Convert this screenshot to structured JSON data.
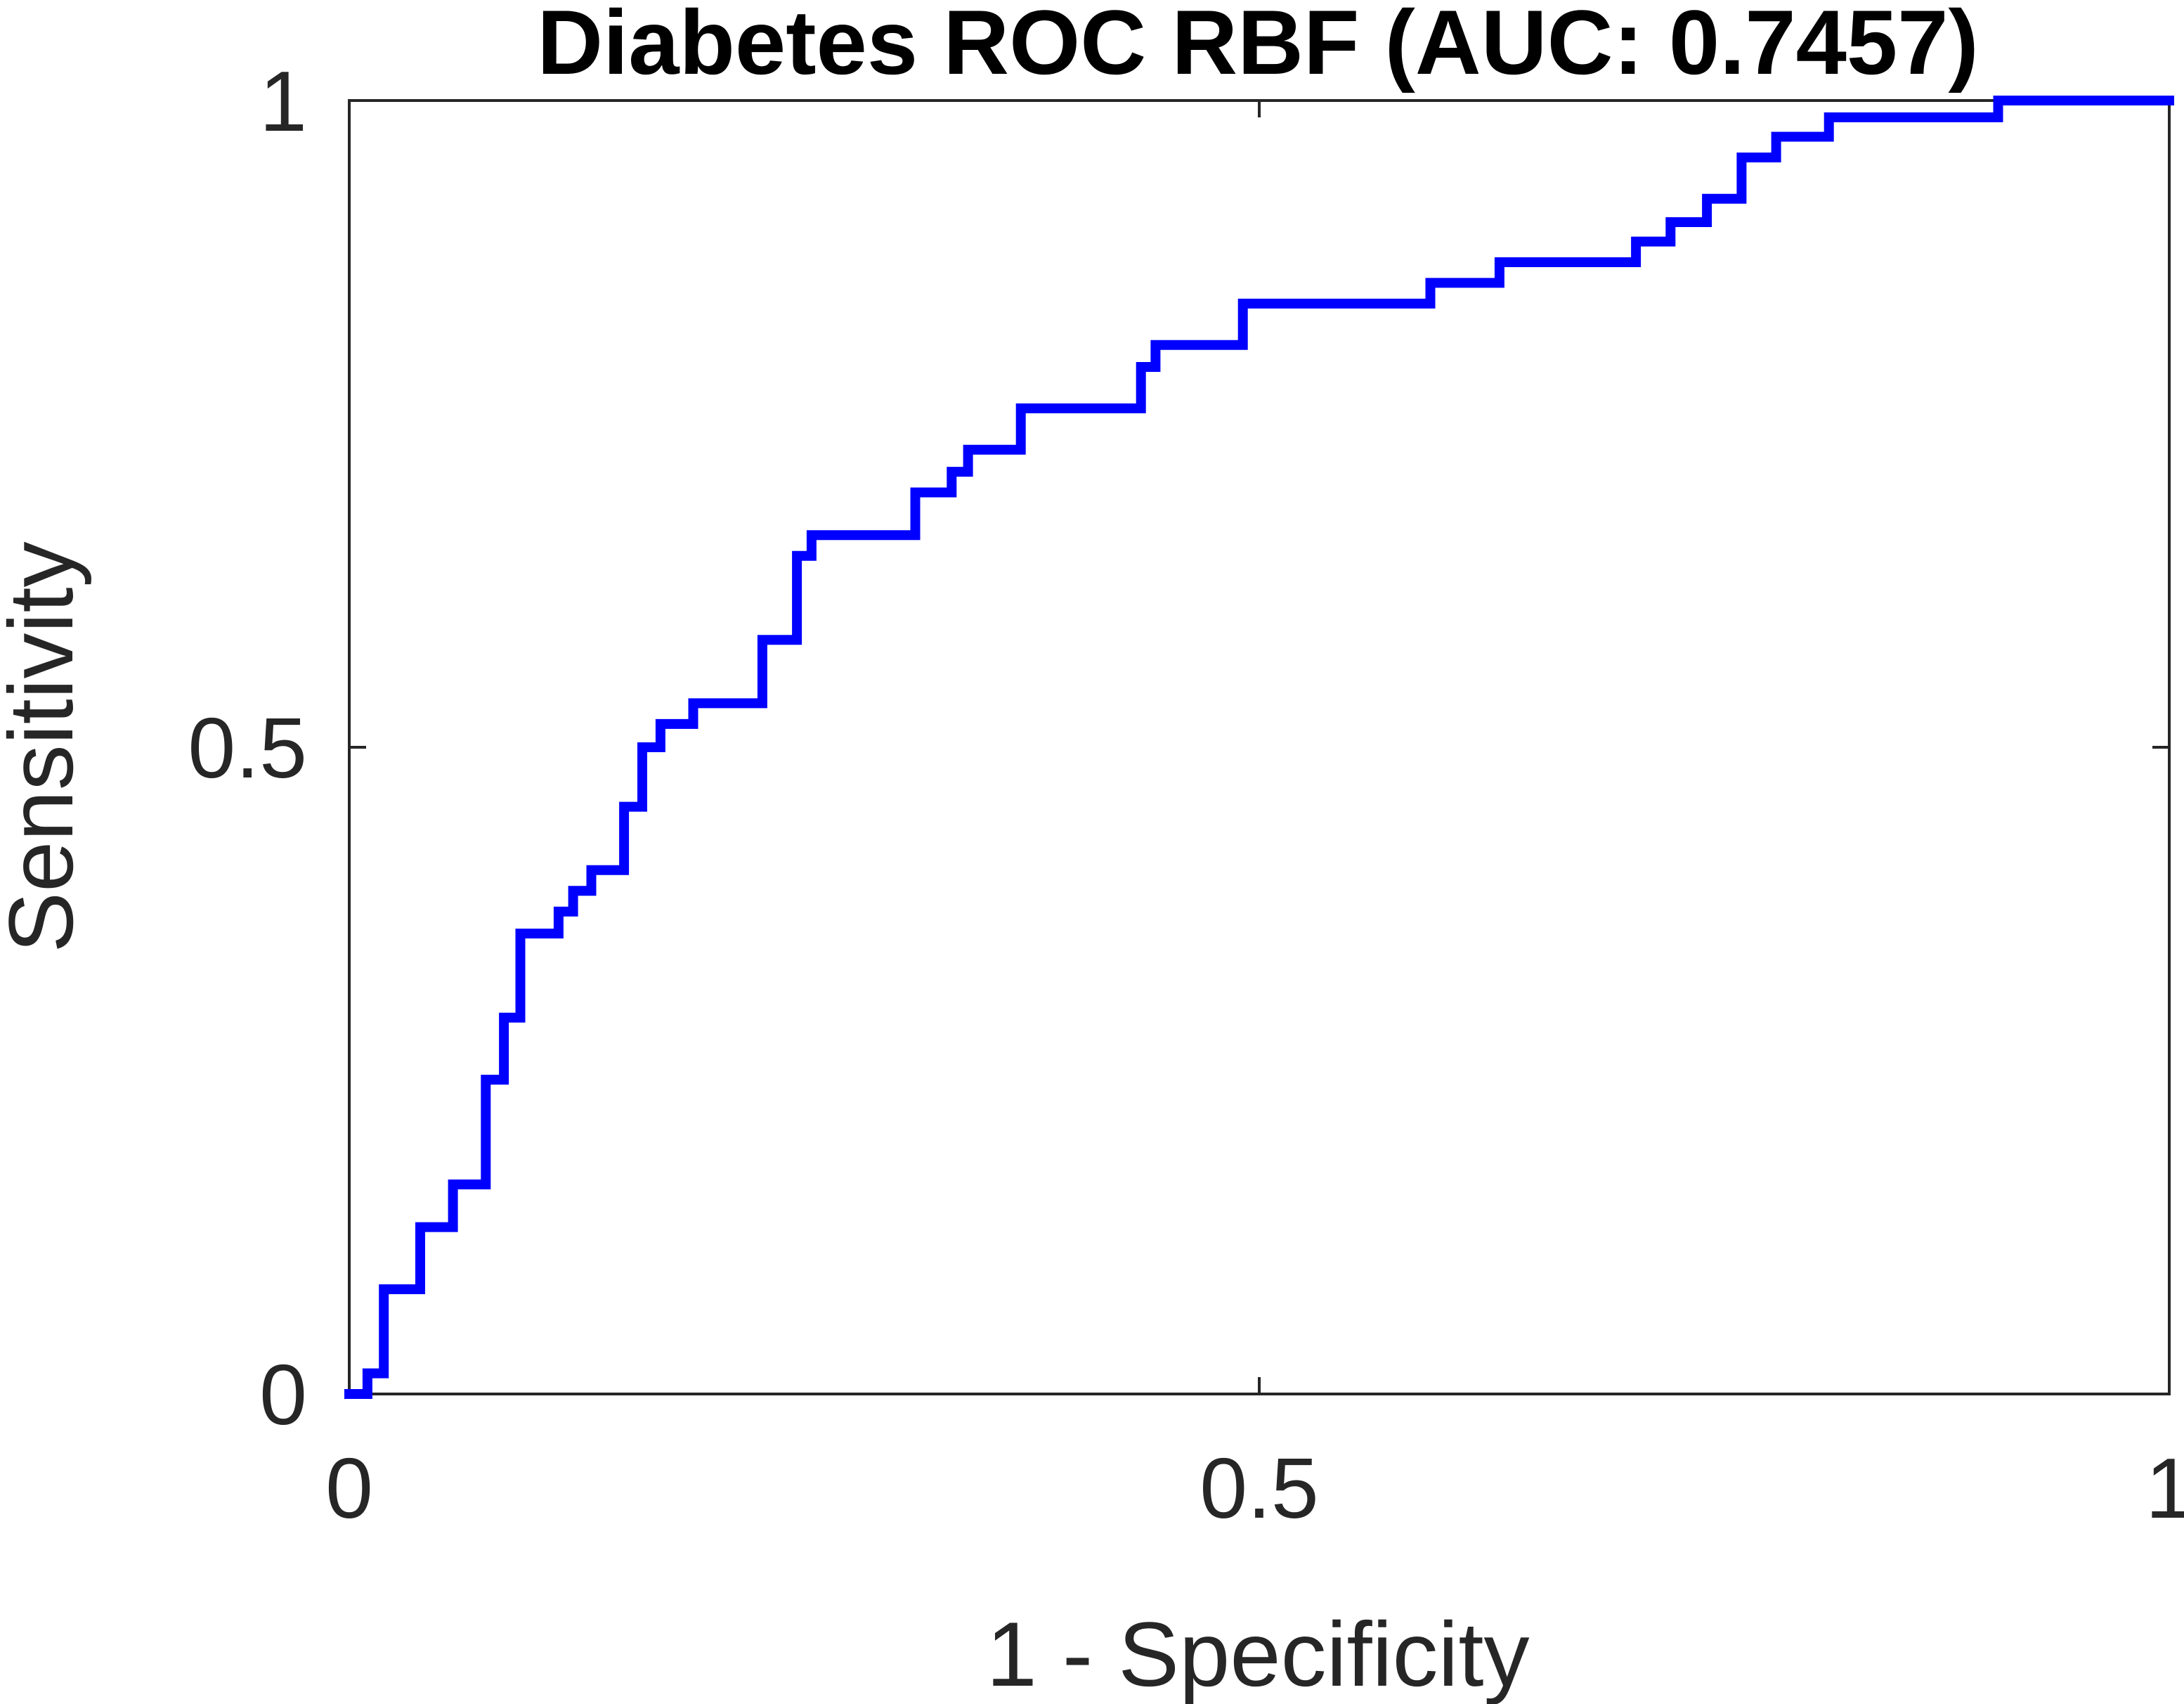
{
  "chart_data": {
    "type": "line",
    "title": "Diabetes ROC RBF (AUC: 0.7457)",
    "xlabel": "1 - Specificity",
    "ylabel": "Sensitivity",
    "xlim": [
      0,
      1
    ],
    "ylim": [
      0,
      1
    ],
    "xticks": [
      0,
      0.5,
      1
    ],
    "xtick_labels": [
      "0",
      "0.5",
      "1"
    ],
    "yticks": [
      0,
      0.5,
      1
    ],
    "ytick_labels": [
      "0",
      "0.5",
      "1"
    ],
    "grid": false,
    "line_color": "#0000ff",
    "series": [
      {
        "step": true,
        "x": [
          0,
          0.01,
          0.019,
          0.039,
          0.057,
          0.075,
          0.085,
          0.094,
          0.115,
          0.123,
          0.133,
          0.151,
          0.161,
          0.171,
          0.189,
          0.227,
          0.246,
          0.254,
          0.311,
          0.331,
          0.34,
          0.369,
          0.435,
          0.443,
          0.491,
          0.594,
          0.632,
          0.707,
          0.726,
          0.746,
          0.765,
          0.784,
          0.813,
          0.906,
          1.0
        ],
        "y": [
          0,
          0.016,
          0.081,
          0.129,
          0.162,
          0.243,
          0.291,
          0.356,
          0.373,
          0.389,
          0.405,
          0.454,
          0.5,
          0.518,
          0.534,
          0.583,
          0.648,
          0.664,
          0.697,
          0.713,
          0.73,
          0.762,
          0.794,
          0.811,
          0.843,
          0.859,
          0.875,
          0.891,
          0.906,
          0.924,
          0.956,
          0.972,
          0.987,
          1.0,
          1.0
        ]
      }
    ]
  }
}
